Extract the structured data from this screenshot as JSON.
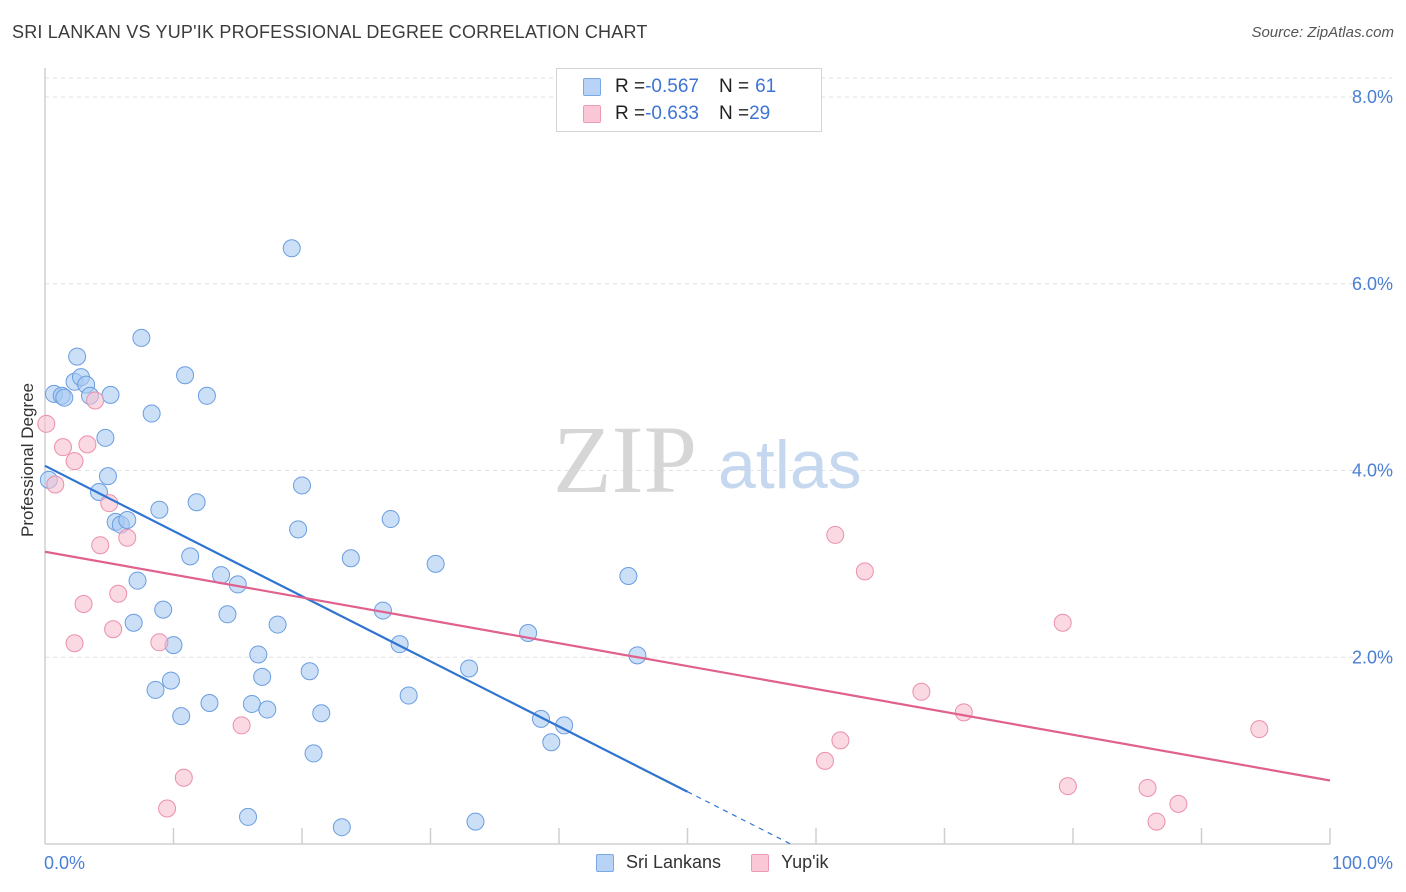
{
  "title": "SRI LANKAN VS YUP'IK PROFESSIONAL DEGREE CORRELATION CHART",
  "source": "Source: ZipAtlas.com",
  "watermark": {
    "zip": "ZIP",
    "atlas": "atlas"
  },
  "legend": {
    "rows": [
      {
        "r_label": "R = ",
        "r_value": "-0.567",
        "n_label": "N = ",
        "n_value": "61",
        "color": "#b8d3f5",
        "border": "#7aa9e6"
      },
      {
        "r_label": "R = ",
        "r_value": "-0.633",
        "n_label": "N = ",
        "n_value": "29",
        "color": "#f9c7d6",
        "border": "#ee9ab4"
      }
    ]
  },
  "bottom_legend": [
    {
      "label": "Sri Lankans",
      "color": "#b8d3f5",
      "border": "#7aa9e6"
    },
    {
      "label": "Yup'ik",
      "color": "#f9c7d6",
      "border": "#ee9ab4"
    }
  ],
  "chart_data": {
    "type": "scatter",
    "title": "SRI LANKAN VS YUP'IK PROFESSIONAL DEGREE CORRELATION CHART",
    "xlabel": "",
    "ylabel": "Professional Degree",
    "xlim": [
      0,
      100
    ],
    "ylim": [
      0,
      8.0
    ],
    "x_tick_labels": [
      "0.0%",
      "100.0%"
    ],
    "y_ticks": [
      2.0,
      4.0,
      6.0,
      8.0
    ],
    "y_tick_labels": [
      "2.0%",
      "4.0%",
      "6.0%",
      "8.0%"
    ],
    "grid": true,
    "legend_position": "top-center",
    "series": [
      {
        "name": "Sri Lankans",
        "color": "#a9c9f2",
        "stroke": "#6a9de0",
        "line_color": "#2f74d0",
        "trend": {
          "x0": 0.0,
          "y0": 4.05,
          "x1": 50.0,
          "y1": 0.56,
          "dash_to_x": 58.0
        },
        "points": [
          [
            0.3,
            3.9
          ],
          [
            0.7,
            4.82
          ],
          [
            1.3,
            4.8
          ],
          [
            1.5,
            4.78
          ],
          [
            2.3,
            4.95
          ],
          [
            2.5,
            5.22
          ],
          [
            2.8,
            5.0
          ],
          [
            3.2,
            4.92
          ],
          [
            3.5,
            4.8
          ],
          [
            5.1,
            4.81
          ],
          [
            4.9,
            3.94
          ],
          [
            4.2,
            3.77
          ],
          [
            4.7,
            4.35
          ],
          [
            5.5,
            3.45
          ],
          [
            5.9,
            3.42
          ],
          [
            6.4,
            3.47
          ],
          [
            7.2,
            2.82
          ],
          [
            7.5,
            5.42
          ],
          [
            8.3,
            4.61
          ],
          [
            8.9,
            3.58
          ],
          [
            9.2,
            2.51
          ],
          [
            10.0,
            2.13
          ],
          [
            9.8,
            1.75
          ],
          [
            10.6,
            1.37
          ],
          [
            10.9,
            5.02
          ],
          [
            11.3,
            3.08
          ],
          [
            11.8,
            3.66
          ],
          [
            12.6,
            4.8
          ],
          [
            12.8,
            1.51
          ],
          [
            13.7,
            2.88
          ],
          [
            14.2,
            2.46
          ],
          [
            15.0,
            2.78
          ],
          [
            15.8,
            0.29
          ],
          [
            16.1,
            1.5
          ],
          [
            16.6,
            2.03
          ],
          [
            16.9,
            1.79
          ],
          [
            17.3,
            1.44
          ],
          [
            18.1,
            2.35
          ],
          [
            19.2,
            6.38
          ],
          [
            19.7,
            3.37
          ],
          [
            20.0,
            3.84
          ],
          [
            20.6,
            1.85
          ],
          [
            20.9,
            0.97
          ],
          [
            21.5,
            1.4
          ],
          [
            23.1,
            0.18
          ],
          [
            23.8,
            3.06
          ],
          [
            26.3,
            2.5
          ],
          [
            26.9,
            3.48
          ],
          [
            27.6,
            2.14
          ],
          [
            28.3,
            1.59
          ],
          [
            30.4,
            3.0
          ],
          [
            33.0,
            1.88
          ],
          [
            33.5,
            0.24
          ],
          [
            37.6,
            2.26
          ],
          [
            38.6,
            1.34
          ],
          [
            39.4,
            1.09
          ],
          [
            40.4,
            1.27
          ],
          [
            45.4,
            2.87
          ],
          [
            46.1,
            2.02
          ],
          [
            6.9,
            2.37
          ],
          [
            8.6,
            1.65
          ]
        ]
      },
      {
        "name": "Yup'ik",
        "color": "#f7bfd0",
        "stroke": "#ec8fab",
        "line_color": "#e0608e",
        "trend": {
          "x0": 0.0,
          "y0": 3.13,
          "x1": 100.0,
          "y1": 0.68
        },
        "points": [
          [
            0.1,
            4.5
          ],
          [
            0.8,
            3.85
          ],
          [
            1.4,
            4.25
          ],
          [
            2.3,
            4.1
          ],
          [
            2.3,
            2.15
          ],
          [
            3.0,
            2.57
          ],
          [
            3.3,
            4.28
          ],
          [
            3.9,
            4.75
          ],
          [
            4.3,
            3.2
          ],
          [
            5.0,
            3.65
          ],
          [
            5.3,
            2.3
          ],
          [
            5.7,
            2.68
          ],
          [
            6.4,
            3.28
          ],
          [
            8.9,
            2.16
          ],
          [
            9.5,
            0.38
          ],
          [
            10.8,
            0.71
          ],
          [
            15.3,
            1.27
          ],
          [
            60.7,
            0.89
          ],
          [
            61.5,
            3.31
          ],
          [
            61.9,
            1.11
          ],
          [
            63.8,
            2.92
          ],
          [
            68.2,
            1.63
          ],
          [
            71.5,
            1.41
          ],
          [
            79.2,
            2.37
          ],
          [
            79.6,
            0.62
          ],
          [
            85.8,
            0.6
          ],
          [
            86.5,
            0.24
          ],
          [
            88.2,
            0.43
          ],
          [
            94.5,
            1.23
          ]
        ]
      }
    ]
  }
}
